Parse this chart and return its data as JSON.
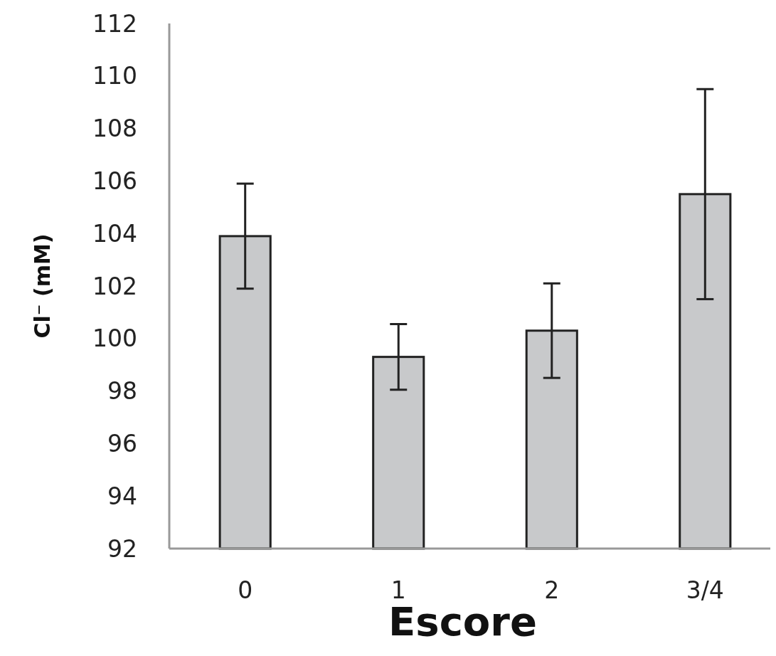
{
  "chart_data": {
    "type": "bar",
    "xlabel": "Escore",
    "ylabel": "Cl⁻ (mM)",
    "categories": [
      "0",
      "1",
      "2",
      "3/4"
    ],
    "values": [
      103.9,
      99.3,
      100.3,
      105.5
    ],
    "errors": [
      2,
      1.25,
      1.8,
      4
    ],
    "color": "#c8c9cb",
    "ylim": [
      92,
      112
    ],
    "yticks": [
      92,
      94,
      96,
      98,
      100,
      102,
      104,
      106,
      108,
      110,
      112
    ],
    "grid": false
  }
}
